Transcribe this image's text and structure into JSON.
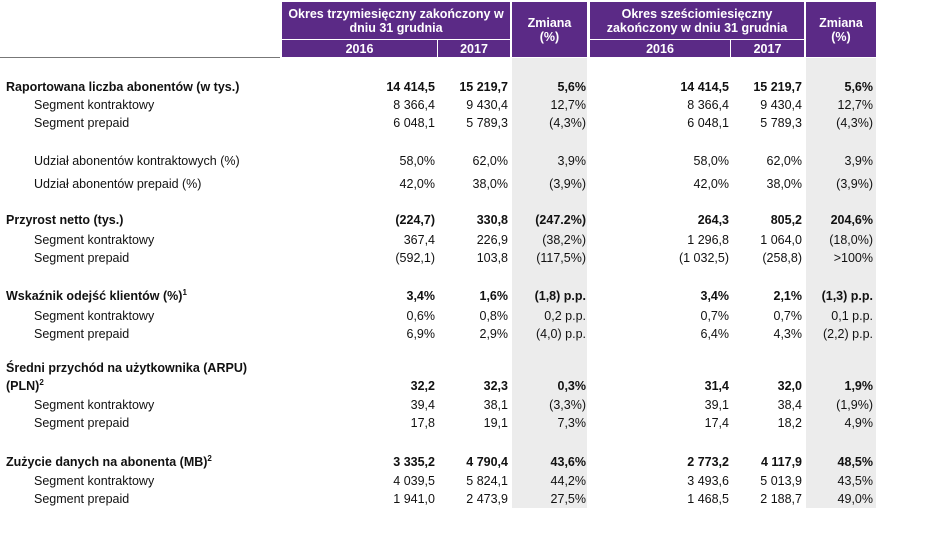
{
  "header": {
    "group1_title": "Okres trzymiesięczny zakończony w dniu 31 grudnia",
    "group2_title": "Okres sześciomiesięczny zakończony w dniu 31 grudnia",
    "change_label": "Zmiana (%)",
    "year_2016": "2016",
    "year_2017": "2017"
  },
  "colors": {
    "header_purple": "#5b2a86",
    "change_column_shade": "#ececec"
  },
  "rows": [
    {
      "label": "Raportowana liczba abonentów (w tys.)",
      "bold": true,
      "q2016": "14 414,5",
      "q2017": "15 219,7",
      "qchg": "5,6%",
      "h2016": "14 414,5",
      "h2017": "15 219,7",
      "hchg": "5,6%"
    },
    {
      "label": "Segment kontraktowy",
      "q2016": "8 366,4",
      "q2017": "9 430,4",
      "qchg": "12,7%",
      "h2016": "8 366,4",
      "h2017": "9 430,4",
      "hchg": "12,7%"
    },
    {
      "label": "Segment prepaid",
      "q2016": "6 048,1",
      "q2017": "5 789,3",
      "qchg": "(4,3%)",
      "h2016": "6 048,1",
      "h2017": "5 789,3",
      "hchg": "(4,3%)"
    },
    {
      "label": "Udział abonentów kontraktowych (%)",
      "q2016": "58,0%",
      "q2017": "62,0%",
      "qchg": "3,9%",
      "h2016": "58,0%",
      "h2017": "62,0%",
      "hchg": "3,9%"
    },
    {
      "label": "Udział abonentów prepaid (%)",
      "q2016": "42,0%",
      "q2017": "38,0%",
      "qchg": "(3,9%)",
      "h2016": "42,0%",
      "h2017": "38,0%",
      "hchg": "(3,9%)"
    },
    {
      "label": "Przyrost netto (tys.)",
      "bold": true,
      "q2016": "(224,7)",
      "q2017": "330,8",
      "qchg": "(247.2%)",
      "h2016": "264,3",
      "h2017": "805,2",
      "hchg": "204,6%"
    },
    {
      "label": "Segment kontraktowy",
      "q2016": "367,4",
      "q2017": "226,9",
      "qchg": "(38,2%)",
      "h2016": "1 296,8",
      "h2017": "1 064,0",
      "hchg": "(18,0%)"
    },
    {
      "label": "Segment prepaid",
      "q2016": "(592,1)",
      "q2017": "103,8",
      "qchg": "(117,5%)",
      "h2016": "(1 032,5)",
      "h2017": "(258,8)",
      "hchg": ">100%"
    },
    {
      "label": "Wskaźnik odejść klientów (%)",
      "sup": "1",
      "bold": true,
      "q2016": "3,4%",
      "q2017": "1,6%",
      "qchg": "(1,8) p.p.",
      "h2016": "3,4%",
      "h2017": "2,1%",
      "hchg": "(1,3) p.p."
    },
    {
      "label": "Segment kontraktowy",
      "q2016": "0,6%",
      "q2017": "0,8%",
      "qchg": "0,2 p.p.",
      "h2016": "0,7%",
      "h2017": "0,7%",
      "hchg": "0,1 p.p."
    },
    {
      "label": "Segment prepaid",
      "q2016": "6,9%",
      "q2017": "2,9%",
      "qchg": "(4,0) p.p.",
      "h2016": "6,4%",
      "h2017": "4,3%",
      "hchg": "(2,2) p.p."
    },
    {
      "label": "Średni przychód na użytkownika (ARPU)",
      "label2": "(PLN)",
      "sup": "2",
      "bold": true,
      "q2016": "32,2",
      "q2017": "32,3",
      "qchg": "0,3%",
      "h2016": "31,4",
      "h2017": "32,0",
      "hchg": "1,9%"
    },
    {
      "label": "Segment kontraktowy",
      "q2016": "39,4",
      "q2017": "38,1",
      "qchg": "(3,3%)",
      "h2016": "39,1",
      "h2017": "38,4",
      "hchg": "(1,9%)"
    },
    {
      "label": "Segment prepaid",
      "q2016": "17,8",
      "q2017": "19,1",
      "qchg": "7,3%",
      "h2016": "17,4",
      "h2017": "18,2",
      "hchg": "4,9%"
    },
    {
      "label": "Zużycie danych na abonenta (MB)",
      "sup": "2",
      "bold": true,
      "q2016": "3 335,2",
      "q2017": "4 790,4",
      "qchg": "43,6%",
      "h2016": "2 773,2",
      "h2017": "4 117,9",
      "hchg": "48,5%"
    },
    {
      "label": "Segment kontraktowy",
      "q2016": "4 039,5",
      "q2017": "5 824,1",
      "qchg": "44,2%",
      "h2016": "3 493,6",
      "h2017": "5 013,9",
      "hchg": "43,5%"
    },
    {
      "label": "Segment prepaid",
      "q2016": "1 941,0",
      "q2017": "2 473,9",
      "qchg": "27,5%",
      "h2016": "1 468,5",
      "h2017": "2 188,7",
      "hchg": "49,0%"
    }
  ]
}
